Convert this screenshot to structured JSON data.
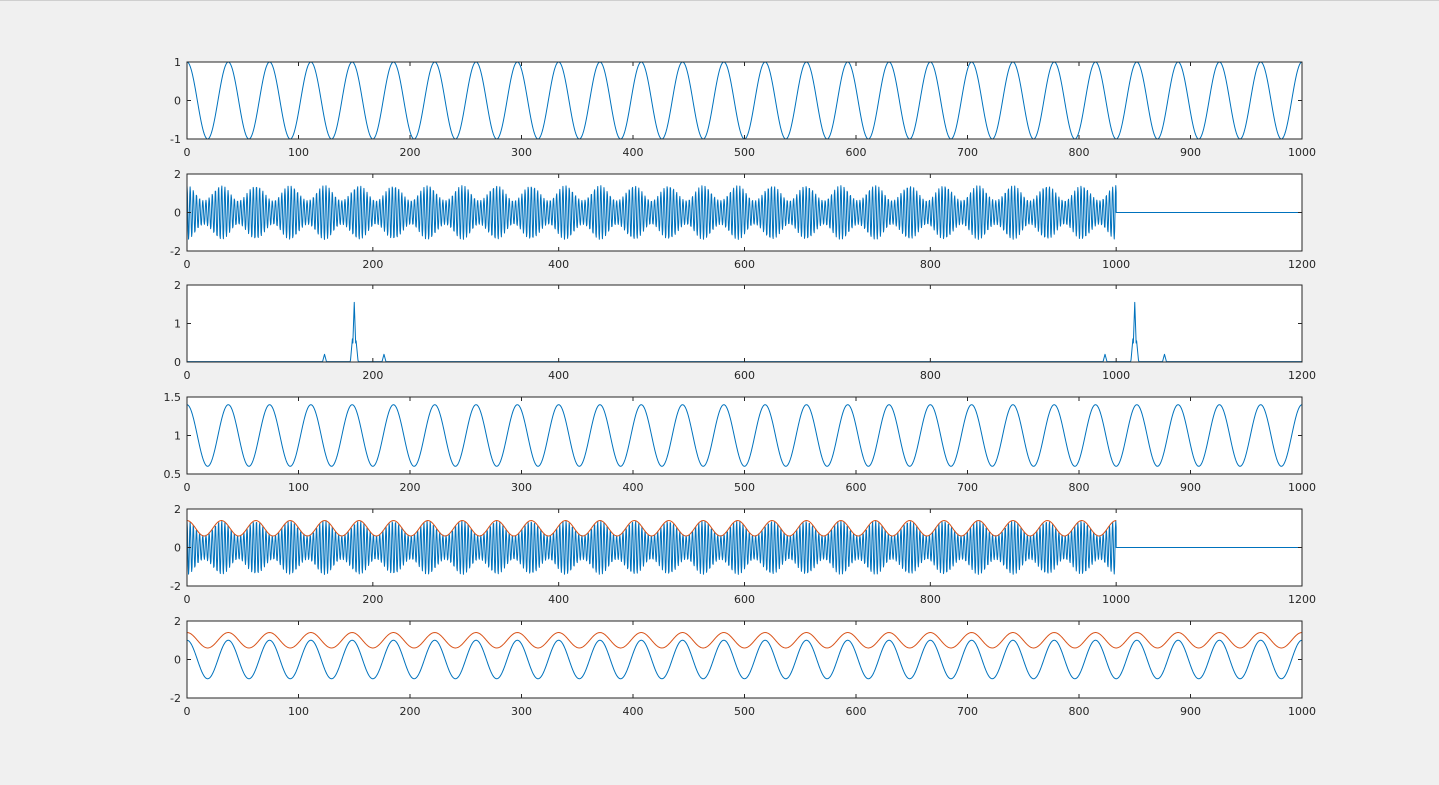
{
  "figure": {
    "background": "#f0f0f0",
    "axes_background": "#ffffff"
  },
  "colors": {
    "blue": "#0072bd",
    "orange": "#d95319"
  },
  "chart_data": [
    {
      "type": "line",
      "title": "",
      "xlabel": "",
      "ylabel": "",
      "xlim": [
        0,
        1000
      ],
      "ylim": [
        -1,
        1
      ],
      "xticks": [
        0,
        100,
        200,
        300,
        400,
        500,
        600,
        700,
        800,
        900,
        1000
      ],
      "yticks": [
        -1,
        0,
        1
      ],
      "series": [
        {
          "color": "blue",
          "kind": "cosine",
          "offset": 0,
          "amplitude": 1,
          "cycles": 27
        }
      ]
    },
    {
      "type": "line",
      "title": "",
      "xlabel": "",
      "ylabel": "",
      "xlim": [
        0,
        1200
      ],
      "ylim": [
        -2,
        2
      ],
      "xticks": [
        0,
        200,
        400,
        600,
        800,
        1000,
        1200
      ],
      "yticks": [
        -2,
        0,
        2
      ],
      "series": [
        {
          "color": "blue",
          "kind": "am-signal",
          "amplitude": 1.4,
          "period": 3.4,
          "envelope_cycles": 27,
          "end": 1000,
          "zero_until": 1200
        }
      ]
    },
    {
      "type": "line",
      "title": "",
      "xlabel": "",
      "ylabel": "",
      "xlim": [
        0,
        1200
      ],
      "ylim": [
        0,
        2
      ],
      "xticks": [
        0,
        200,
        400,
        600,
        800,
        1000,
        1200
      ],
      "yticks": [
        0,
        1,
        2
      ],
      "series": [
        {
          "color": "blue",
          "kind": "spectrum",
          "peaks": [
            {
              "x": 148,
              "y": 0.2
            },
            {
              "x": 178,
              "y": 0.6
            },
            {
              "x": 180,
              "y": 1.55
            },
            {
              "x": 182,
              "y": 0.55
            },
            {
              "x": 212,
              "y": 0.2
            },
            {
              "x": 988,
              "y": 0.2
            },
            {
              "x": 1018,
              "y": 0.6
            },
            {
              "x": 1020,
              "y": 1.55
            },
            {
              "x": 1022,
              "y": 0.55
            },
            {
              "x": 1052,
              "y": 0.2
            }
          ]
        }
      ]
    },
    {
      "type": "line",
      "title": "",
      "xlabel": "",
      "ylabel": "",
      "xlim": [
        0,
        1000
      ],
      "ylim": [
        0.5,
        1.5
      ],
      "xticks": [
        0,
        100,
        200,
        300,
        400,
        500,
        600,
        700,
        800,
        900,
        1000
      ],
      "yticks": [
        0.5,
        1,
        1.5
      ],
      "series": [
        {
          "color": "blue",
          "kind": "cosine",
          "offset": 1,
          "amplitude": 0.4,
          "cycles": 27
        }
      ]
    },
    {
      "type": "line",
      "title": "",
      "xlabel": "",
      "ylabel": "",
      "xlim": [
        0,
        1200
      ],
      "ylim": [
        -2,
        2
      ],
      "xticks": [
        0,
        200,
        400,
        600,
        800,
        1000,
        1200
      ],
      "yticks": [
        -2,
        0,
        2
      ],
      "series": [
        {
          "color": "blue",
          "kind": "am-signal",
          "amplitude": 1.4,
          "period": 3.4,
          "envelope_cycles": 27,
          "end": 1000,
          "zero_until": 1200
        },
        {
          "color": "orange",
          "kind": "cosine",
          "offset": 1,
          "amplitude": 0.4,
          "cycles": 27,
          "end": 1000
        }
      ]
    },
    {
      "type": "line",
      "title": "",
      "xlabel": "",
      "ylabel": "",
      "xlim": [
        0,
        1000
      ],
      "ylim": [
        -2,
        2
      ],
      "xticks": [
        0,
        100,
        200,
        300,
        400,
        500,
        600,
        700,
        800,
        900,
        1000
      ],
      "yticks": [
        -2,
        0,
        2
      ],
      "series": [
        {
          "color": "blue",
          "kind": "cosine",
          "offset": 0,
          "amplitude": 1,
          "cycles": 27
        },
        {
          "color": "orange",
          "kind": "cosine",
          "offset": 1,
          "amplitude": 0.4,
          "cycles": 27
        }
      ]
    }
  ]
}
